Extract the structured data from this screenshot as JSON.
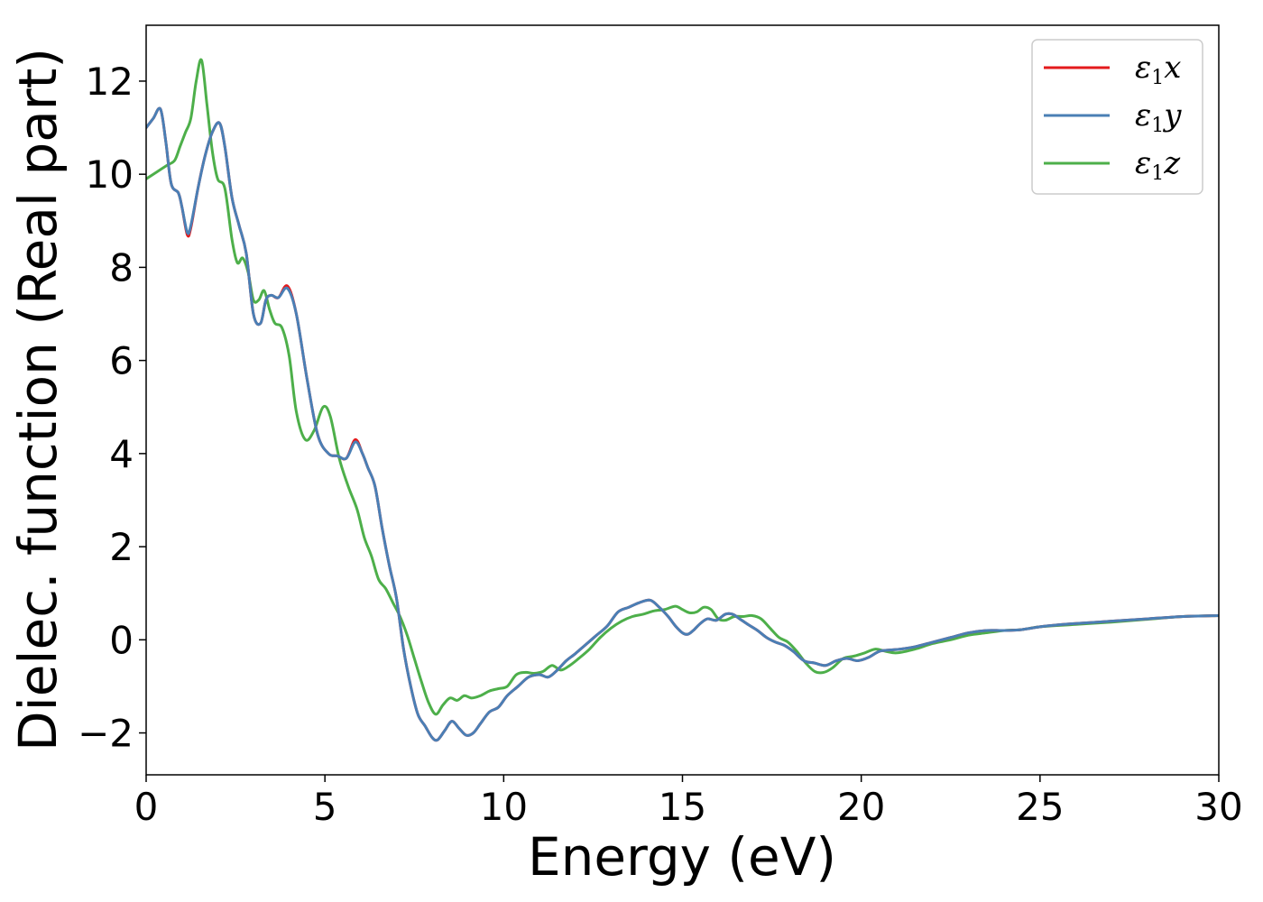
{
  "chart_data": {
    "type": "line",
    "title": "",
    "xlabel": "Energy (eV)",
    "ylabel": "Dielec. function (Real part)",
    "xlim": [
      0,
      30
    ],
    "ylim": [
      -2.9,
      13.2
    ],
    "xticks": [
      0,
      5,
      10,
      15,
      20,
      25,
      30
    ],
    "yticks": [
      -2,
      0,
      2,
      4,
      6,
      8,
      10,
      12
    ],
    "grid": false,
    "legend_position": "top-right",
    "series": [
      {
        "name": "ε₁x",
        "legend_base": "ε",
        "legend_sub": "1",
        "legend_suffix": "x",
        "color": "#e41a1c",
        "x": [
          0,
          0.2,
          0.4,
          0.55,
          0.7,
          0.9,
          1.0,
          1.15,
          1.25,
          1.45,
          1.65,
          1.85,
          2.05,
          2.2,
          2.4,
          2.6,
          2.8,
          3.0,
          3.2,
          3.35,
          3.5,
          3.7,
          3.95,
          4.2,
          4.5,
          4.8,
          5.1,
          5.35,
          5.6,
          5.85,
          6.05,
          6.2,
          6.4,
          6.6,
          6.8,
          7.0,
          7.2,
          7.4,
          7.6,
          7.8,
          8.0,
          8.15,
          8.35,
          8.55,
          8.75,
          8.95,
          9.15,
          9.35,
          9.6,
          9.85,
          10.1,
          10.4,
          10.7,
          11.0,
          11.25,
          11.5,
          11.75,
          12.0,
          12.3,
          12.6,
          12.9,
          13.2,
          13.5,
          13.8,
          14.1,
          14.35,
          14.6,
          14.8,
          15.0,
          15.15,
          15.3,
          15.5,
          15.7,
          15.95,
          16.2,
          16.4,
          16.6,
          16.85,
          17.1,
          17.35,
          17.6,
          17.85,
          18.1,
          18.4,
          18.7,
          19.0,
          19.3,
          19.6,
          19.9,
          20.2,
          20.5,
          20.8,
          21.1,
          21.5,
          22.0,
          22.5,
          23.0,
          23.5,
          24.0,
          24.5,
          25.0,
          25.5,
          26.0,
          27.0,
          28.0,
          29.0,
          30.0
        ],
        "y": [
          11.0,
          11.2,
          11.4,
          10.7,
          9.8,
          9.6,
          9.3,
          8.7,
          8.85,
          9.7,
          10.4,
          10.9,
          11.1,
          10.6,
          9.5,
          8.9,
          8.3,
          7.0,
          6.8,
          7.3,
          7.4,
          7.35,
          7.6,
          7.0,
          5.6,
          4.4,
          4.0,
          3.95,
          3.9,
          4.3,
          4.0,
          3.7,
          3.3,
          2.4,
          1.6,
          0.9,
          -0.2,
          -1.0,
          -1.6,
          -1.85,
          -2.1,
          -2.15,
          -1.95,
          -1.75,
          -1.9,
          -2.05,
          -2.0,
          -1.8,
          -1.55,
          -1.45,
          -1.2,
          -1.0,
          -0.8,
          -0.75,
          -0.8,
          -0.65,
          -0.45,
          -0.3,
          -0.1,
          0.1,
          0.3,
          0.6,
          0.7,
          0.8,
          0.85,
          0.7,
          0.5,
          0.3,
          0.15,
          0.12,
          0.2,
          0.35,
          0.45,
          0.42,
          0.55,
          0.55,
          0.45,
          0.32,
          0.2,
          0.05,
          -0.05,
          -0.12,
          -0.25,
          -0.45,
          -0.5,
          -0.55,
          -0.45,
          -0.4,
          -0.45,
          -0.38,
          -0.25,
          -0.22,
          -0.2,
          -0.15,
          -0.05,
          0.05,
          0.15,
          0.2,
          0.2,
          0.22,
          0.28,
          0.32,
          0.35,
          0.4,
          0.45,
          0.5,
          0.52
        ]
      },
      {
        "name": "ε₁y",
        "legend_base": "ε",
        "legend_sub": "1",
        "legend_suffix": "y",
        "color": "#4a7fb5",
        "x": [
          0,
          0.2,
          0.4,
          0.55,
          0.7,
          0.9,
          1.0,
          1.15,
          1.25,
          1.45,
          1.65,
          1.85,
          2.05,
          2.2,
          2.4,
          2.6,
          2.8,
          3.0,
          3.2,
          3.35,
          3.5,
          3.7,
          3.95,
          4.2,
          4.5,
          4.8,
          5.1,
          5.35,
          5.6,
          5.85,
          6.05,
          6.2,
          6.4,
          6.6,
          6.8,
          7.0,
          7.2,
          7.4,
          7.6,
          7.8,
          8.0,
          8.15,
          8.35,
          8.55,
          8.75,
          8.95,
          9.15,
          9.35,
          9.6,
          9.85,
          10.1,
          10.4,
          10.7,
          11.0,
          11.25,
          11.5,
          11.75,
          12.0,
          12.3,
          12.6,
          12.9,
          13.2,
          13.5,
          13.8,
          14.1,
          14.35,
          14.6,
          14.8,
          15.0,
          15.15,
          15.3,
          15.5,
          15.7,
          15.95,
          16.2,
          16.4,
          16.6,
          16.85,
          17.1,
          17.35,
          17.6,
          17.85,
          18.1,
          18.4,
          18.7,
          19.0,
          19.3,
          19.6,
          19.9,
          20.2,
          20.5,
          20.8,
          21.1,
          21.5,
          22.0,
          22.5,
          23.0,
          23.5,
          24.0,
          24.5,
          25.0,
          25.5,
          26.0,
          27.0,
          28.0,
          29.0,
          30.0
        ],
        "y": [
          11.0,
          11.2,
          11.4,
          10.7,
          9.8,
          9.6,
          9.3,
          8.75,
          8.9,
          9.7,
          10.4,
          10.9,
          11.1,
          10.6,
          9.5,
          8.9,
          8.3,
          7.0,
          6.8,
          7.3,
          7.4,
          7.35,
          7.55,
          7.0,
          5.6,
          4.4,
          4.0,
          3.95,
          3.9,
          4.25,
          4.0,
          3.7,
          3.3,
          2.4,
          1.6,
          0.9,
          -0.2,
          -1.0,
          -1.6,
          -1.85,
          -2.1,
          -2.15,
          -1.95,
          -1.75,
          -1.9,
          -2.05,
          -2.0,
          -1.8,
          -1.55,
          -1.45,
          -1.2,
          -1.0,
          -0.8,
          -0.75,
          -0.8,
          -0.65,
          -0.45,
          -0.3,
          -0.1,
          0.1,
          0.3,
          0.6,
          0.7,
          0.8,
          0.85,
          0.7,
          0.5,
          0.3,
          0.15,
          0.12,
          0.2,
          0.35,
          0.45,
          0.42,
          0.55,
          0.55,
          0.45,
          0.32,
          0.2,
          0.05,
          -0.05,
          -0.12,
          -0.25,
          -0.45,
          -0.5,
          -0.55,
          -0.45,
          -0.4,
          -0.45,
          -0.38,
          -0.25,
          -0.22,
          -0.2,
          -0.15,
          -0.05,
          0.05,
          0.15,
          0.2,
          0.2,
          0.22,
          0.28,
          0.32,
          0.35,
          0.4,
          0.45,
          0.5,
          0.52
        ]
      },
      {
        "name": "ε₁z",
        "legend_base": "ε",
        "legend_sub": "1",
        "legend_suffix": "z",
        "color": "#4daf4a",
        "x": [
          0,
          0.3,
          0.6,
          0.8,
          0.95,
          1.1,
          1.25,
          1.4,
          1.55,
          1.7,
          1.85,
          2.0,
          2.2,
          2.4,
          2.55,
          2.7,
          2.85,
          3.0,
          3.15,
          3.3,
          3.45,
          3.6,
          3.8,
          4.0,
          4.2,
          4.45,
          4.7,
          4.95,
          5.15,
          5.4,
          5.65,
          5.9,
          6.1,
          6.3,
          6.5,
          6.7,
          6.9,
          7.1,
          7.3,
          7.5,
          7.7,
          7.9,
          8.1,
          8.3,
          8.5,
          8.7,
          8.9,
          9.1,
          9.35,
          9.6,
          9.85,
          10.1,
          10.35,
          10.6,
          10.85,
          11.1,
          11.35,
          11.6,
          11.85,
          12.1,
          12.4,
          12.7,
          13.0,
          13.3,
          13.6,
          13.9,
          14.2,
          14.5,
          14.8,
          15.0,
          15.2,
          15.4,
          15.6,
          15.8,
          16.0,
          16.2,
          16.45,
          16.7,
          16.95,
          17.2,
          17.45,
          17.7,
          17.95,
          18.2,
          18.45,
          18.7,
          18.95,
          19.2,
          19.5,
          19.8,
          20.1,
          20.4,
          20.7,
          21.0,
          21.5,
          22.0,
          22.5,
          23.0,
          23.5,
          24.0,
          24.5,
          25.0,
          26.0,
          27.0,
          28.0,
          29.0,
          30.0
        ],
        "y": [
          9.9,
          10.05,
          10.2,
          10.3,
          10.6,
          10.9,
          11.2,
          12.0,
          12.45,
          11.5,
          10.5,
          9.9,
          9.7,
          8.6,
          8.1,
          8.2,
          7.9,
          7.3,
          7.3,
          7.5,
          7.1,
          6.8,
          6.7,
          6.1,
          4.9,
          4.3,
          4.5,
          5.0,
          4.8,
          3.9,
          3.3,
          2.8,
          2.2,
          1.8,
          1.3,
          1.1,
          0.8,
          0.5,
          0.1,
          -0.4,
          -0.9,
          -1.35,
          -1.6,
          -1.4,
          -1.25,
          -1.3,
          -1.2,
          -1.25,
          -1.2,
          -1.1,
          -1.05,
          -1.0,
          -0.75,
          -0.7,
          -0.72,
          -0.68,
          -0.55,
          -0.65,
          -0.55,
          -0.4,
          -0.2,
          0.05,
          0.25,
          0.4,
          0.5,
          0.55,
          0.62,
          0.65,
          0.72,
          0.65,
          0.58,
          0.6,
          0.7,
          0.65,
          0.45,
          0.42,
          0.5,
          0.5,
          0.52,
          0.45,
          0.25,
          0.05,
          -0.05,
          -0.25,
          -0.5,
          -0.68,
          -0.7,
          -0.6,
          -0.4,
          -0.35,
          -0.28,
          -0.2,
          -0.25,
          -0.28,
          -0.2,
          -0.08,
          0.0,
          0.1,
          0.15,
          0.2,
          0.22,
          0.28,
          0.33,
          0.38,
          0.44,
          0.5,
          0.52
        ]
      }
    ]
  }
}
